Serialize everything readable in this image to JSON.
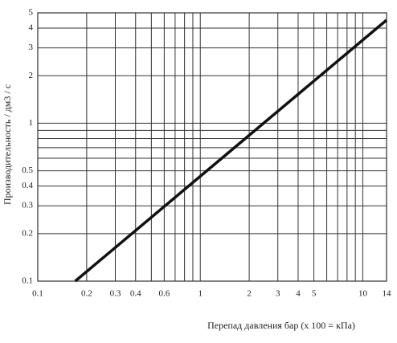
{
  "chart_data": {
    "type": "line",
    "x_label": "Перепад давления  бар (x 100 = кПа)",
    "y_label": "Производительность / дм3 / с",
    "xscale": "log",
    "yscale": "log",
    "xlim": [
      0.1,
      14
    ],
    "ylim": [
      0.1,
      5
    ],
    "xticks": [
      0.1,
      0.2,
      0.3,
      0.4,
      0.6,
      1,
      2,
      3,
      4,
      5,
      10,
      14
    ],
    "xminor": [
      0.5,
      0.7,
      0.8,
      0.9,
      6,
      7,
      8,
      9
    ],
    "yticks": [
      0.1,
      0.2,
      0.3,
      0.4,
      0.5,
      1,
      2,
      3,
      4,
      5
    ],
    "yminor": [
      0.6,
      0.7,
      0.8,
      0.9
    ],
    "grid": true,
    "series": [
      {
        "color": "#111111",
        "x": [
          0.17,
          14
        ],
        "values": [
          0.1,
          4.5
        ]
      }
    ]
  }
}
